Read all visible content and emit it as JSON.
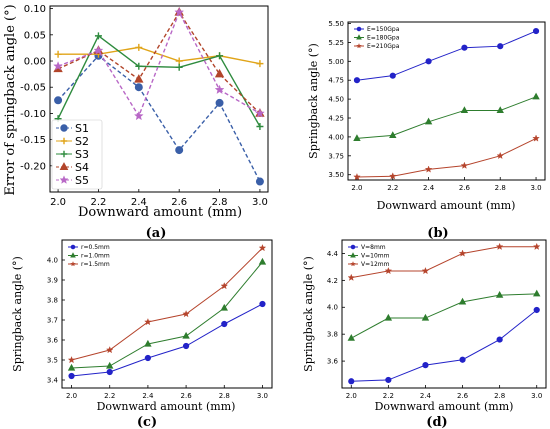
{
  "chart_data": [
    {
      "id": "a",
      "panel_label": "(a)",
      "type": "line",
      "xlabel": "Downward amount (mm)",
      "ylabel": "Error of springback angle (°)",
      "x": [
        2.0,
        2.2,
        2.4,
        2.6,
        2.8,
        3.0
      ],
      "xticks": [
        "2.0",
        "2.2",
        "2.4",
        "2.6",
        "2.8",
        "3.0"
      ],
      "xlim": [
        1.96,
        3.04
      ],
      "ylim": [
        -0.25,
        0.105
      ],
      "yticks": [
        0.1,
        0.05,
        0.0,
        -0.05,
        -0.1,
        -0.15,
        -0.2
      ],
      "ytick_labels": [
        "0.10",
        "0.05",
        "0.00",
        "-0.05",
        "-0.10",
        "-0.15",
        "-0.20"
      ],
      "legend_position": "lower-left",
      "series": [
        {
          "name": "S1",
          "color": "#3a5fa8",
          "marker": "circle",
          "dash": true,
          "values": [
            -0.075,
            0.01,
            -0.05,
            -0.17,
            -0.08,
            -0.23
          ]
        },
        {
          "name": "S2",
          "color": "#e0a418",
          "marker": "plus",
          "dash": false,
          "values": [
            0.013,
            0.013,
            0.026,
            0.0,
            0.01,
            -0.005
          ]
        },
        {
          "name": "S3",
          "color": "#2e8b3e",
          "marker": "plus",
          "dash": false,
          "values": [
            -0.11,
            0.048,
            -0.01,
            -0.012,
            0.01,
            -0.125
          ]
        },
        {
          "name": "S4",
          "color": "#b2452a",
          "marker": "triangle",
          "dash": true,
          "values": [
            -0.015,
            0.02,
            -0.035,
            0.093,
            -0.025,
            -0.1
          ]
        },
        {
          "name": "S5",
          "color": "#b867c6",
          "marker": "star",
          "dash": true,
          "values": [
            -0.01,
            0.02,
            -0.105,
            0.093,
            -0.055,
            -0.1
          ]
        }
      ]
    },
    {
      "id": "b",
      "panel_label": "(b)",
      "type": "line",
      "xlabel": "Downward amount (mm)",
      "ylabel": "Springback angle (°)",
      "x": [
        2.0,
        2.2,
        2.4,
        2.6,
        2.8,
        3.0
      ],
      "xticks": [
        "2.0",
        "2.2",
        "2.4",
        "2.6",
        "2.8",
        "3.0"
      ],
      "xlim": [
        1.95,
        3.05
      ],
      "ylim": [
        3.43,
        5.52
      ],
      "yticks": [
        3.5,
        3.75,
        4.0,
        4.25,
        4.5,
        4.75,
        5.0,
        5.25,
        5.5
      ],
      "ytick_labels": [
        "3.50",
        "3.75",
        "4.00",
        "4.25",
        "4.50",
        "4.75",
        "5.00",
        "5.25",
        "5.50"
      ],
      "legend_position": "top-left",
      "series": [
        {
          "name": "E=150Gpa",
          "color": "#2323c8",
          "marker": "circle",
          "values": [
            4.75,
            4.81,
            5.0,
            5.18,
            5.2,
            5.4
          ]
        },
        {
          "name": "E=180Gpa",
          "color": "#2e7d2e",
          "marker": "triangle",
          "values": [
            3.98,
            4.02,
            4.2,
            4.35,
            4.35,
            4.53
          ]
        },
        {
          "name": "E=210Gpa",
          "color": "#b5442c",
          "marker": "star",
          "values": [
            3.47,
            3.48,
            3.57,
            3.62,
            3.75,
            3.98
          ]
        }
      ]
    },
    {
      "id": "c",
      "panel_label": "(c)",
      "type": "line",
      "xlabel": "Downward amount (mm)",
      "ylabel": "Springback angle (°)",
      "x": [
        2.0,
        2.2,
        2.4,
        2.6,
        2.8,
        3.0
      ],
      "xticks": [
        "2.0",
        "2.2",
        "2.4",
        "2.6",
        "2.8",
        "3.0"
      ],
      "xlim": [
        1.95,
        3.05
      ],
      "ylim": [
        3.36,
        4.1
      ],
      "yticks": [
        3.4,
        3.5,
        3.6,
        3.7,
        3.8,
        3.9,
        4.0
      ],
      "ytick_labels": [
        "3.4",
        "3.5",
        "3.6",
        "3.7",
        "3.8",
        "3.9",
        "4.0"
      ],
      "legend_position": "top-left",
      "series": [
        {
          "name": "r=0.5mm",
          "color": "#2323c8",
          "marker": "circle",
          "values": [
            3.42,
            3.44,
            3.51,
            3.57,
            3.68,
            3.78
          ]
        },
        {
          "name": "r=1.0mm",
          "color": "#2e7d2e",
          "marker": "triangle",
          "values": [
            3.46,
            3.47,
            3.58,
            3.62,
            3.76,
            3.99
          ]
        },
        {
          "name": "r=1.5mm",
          "color": "#b5442c",
          "marker": "star",
          "values": [
            3.5,
            3.55,
            3.69,
            3.73,
            3.87,
            4.06
          ]
        }
      ]
    },
    {
      "id": "d",
      "panel_label": "(d)",
      "type": "line",
      "xlabel": "Downward amount (mm)",
      "ylabel": "Springback angle (°)",
      "x": [
        2.0,
        2.2,
        2.4,
        2.6,
        2.8,
        3.0
      ],
      "xticks": [
        "2.0",
        "2.2",
        "2.4",
        "2.6",
        "2.8",
        "3.0"
      ],
      "xlim": [
        1.95,
        3.05
      ],
      "ylim": [
        3.4,
        4.5
      ],
      "yticks": [
        3.6,
        3.8,
        4.0,
        4.2,
        4.4
      ],
      "ytick_labels": [
        "3.6",
        "3.8",
        "4.0",
        "4.2",
        "4.4"
      ],
      "legend_position": "top-left",
      "series": [
        {
          "name": "V=8mm",
          "color": "#2323c8",
          "marker": "circle",
          "values": [
            3.45,
            3.46,
            3.57,
            3.61,
            3.76,
            3.98
          ]
        },
        {
          "name": "V=10mm",
          "color": "#2e7d2e",
          "marker": "triangle",
          "values": [
            3.77,
            3.92,
            3.92,
            4.04,
            4.09,
            4.1
          ]
        },
        {
          "name": "V=12mm",
          "color": "#b5442c",
          "marker": "star",
          "values": [
            4.22,
            4.27,
            4.27,
            4.4,
            4.45,
            4.45
          ]
        }
      ]
    }
  ]
}
